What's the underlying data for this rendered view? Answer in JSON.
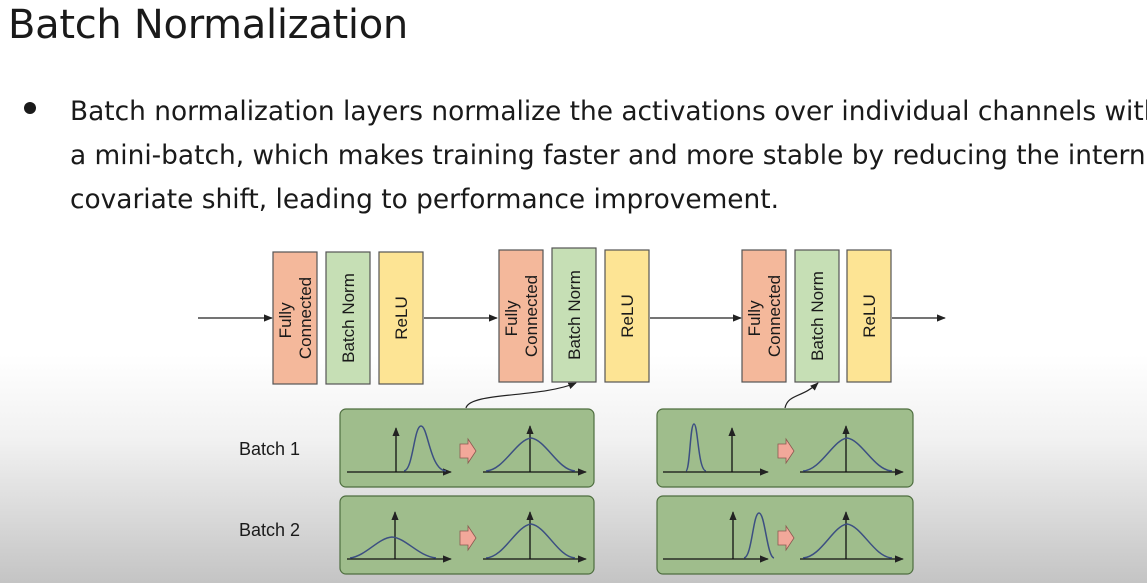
{
  "title": "Batch Normalization",
  "bullet": {
    "lines": [
      "Batch normalization layers normalize the activations over individual channels within",
      "a mini-batch, which makes training faster and more stable by reducing the internal",
      "covariate shift, leading to performance improvement."
    ]
  },
  "diagram": {
    "layers": {
      "fc_line1": "Fully",
      "fc_line2": "Connected",
      "bn": "Batch Norm",
      "relu": "ReLU"
    },
    "batch_labels": [
      "Batch 1",
      "Batch 2"
    ],
    "colors": {
      "fully_connected": "#f4b89b",
      "batch_norm": "#c6dfb5",
      "relu": "#fde494",
      "panel_fill": "#9fbd8c",
      "panel_border": "#4e6e3f",
      "transform_arrow": "#f2a89a",
      "curve": "#3c4f82"
    }
  }
}
